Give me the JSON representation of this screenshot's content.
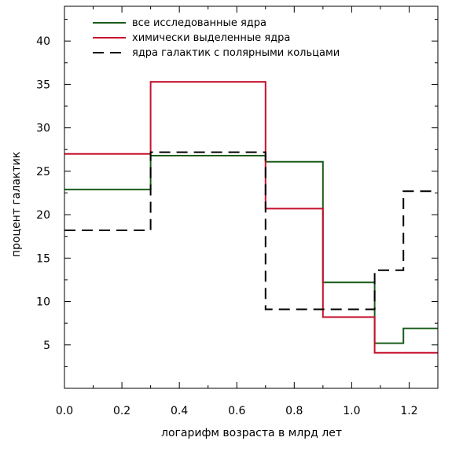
{
  "chart_data": {
    "type": "line",
    "step": true,
    "title": "",
    "xlabel": "логарифм возраста в млрд лет",
    "ylabel": "процент галактик",
    "xlim": [
      0.0,
      1.3
    ],
    "ylim": [
      0,
      44
    ],
    "x_ticks": [
      0.0,
      0.2,
      0.4,
      0.6,
      0.8,
      1.0,
      1.2
    ],
    "x_tick_labels": [
      "0.0",
      "0.2",
      "0.4",
      "0.6",
      "0.8",
      "1.0",
      "1.2"
    ],
    "y_ticks": [
      5,
      10,
      15,
      20,
      25,
      30,
      35,
      40
    ],
    "y_tick_labels": [
      "5",
      "10",
      "15",
      "20",
      "25",
      "30",
      "35",
      "40"
    ],
    "grid": false,
    "legend_position": "top-left",
    "series": [
      {
        "name": "все исследованные ядра",
        "color": "#1a5c1a",
        "dash": "solid",
        "bins": [
          {
            "x0": 0.0,
            "x1": 0.3,
            "y": 22.9
          },
          {
            "x0": 0.3,
            "x1": 0.7,
            "y": 26.8
          },
          {
            "x0": 0.7,
            "x1": 0.9,
            "y": 26.1
          },
          {
            "x0": 0.9,
            "x1": 1.08,
            "y": 12.2
          },
          {
            "x0": 1.08,
            "x1": 1.18,
            "y": 5.2
          },
          {
            "x0": 1.18,
            "x1": 1.3,
            "y": 6.9
          }
        ]
      },
      {
        "name": "химически выделенные ядра",
        "color": "#c8102e",
        "dash": "solid",
        "bins": [
          {
            "x0": 0.0,
            "x1": 0.3,
            "y": 27.0
          },
          {
            "x0": 0.3,
            "x1": 0.7,
            "y": 35.3
          },
          {
            "x0": 0.7,
            "x1": 0.9,
            "y": 20.7
          },
          {
            "x0": 0.9,
            "x1": 1.08,
            "y": 8.2
          },
          {
            "x0": 1.08,
            "x1": 1.3,
            "y": 4.1
          }
        ]
      },
      {
        "name": "ядра галактик с полярными кольцами",
        "color": "#000000",
        "dash": "dashed",
        "bins": [
          {
            "x0": 0.0,
            "x1": 0.3,
            "y": 18.2
          },
          {
            "x0": 0.3,
            "x1": 0.7,
            "y": 27.2
          },
          {
            "x0": 0.7,
            "x1": 1.08,
            "y": 9.1
          },
          {
            "x0": 1.08,
            "x1": 1.18,
            "y": 13.6
          },
          {
            "x0": 1.18,
            "x1": 1.3,
            "y": 22.7
          }
        ]
      }
    ]
  }
}
